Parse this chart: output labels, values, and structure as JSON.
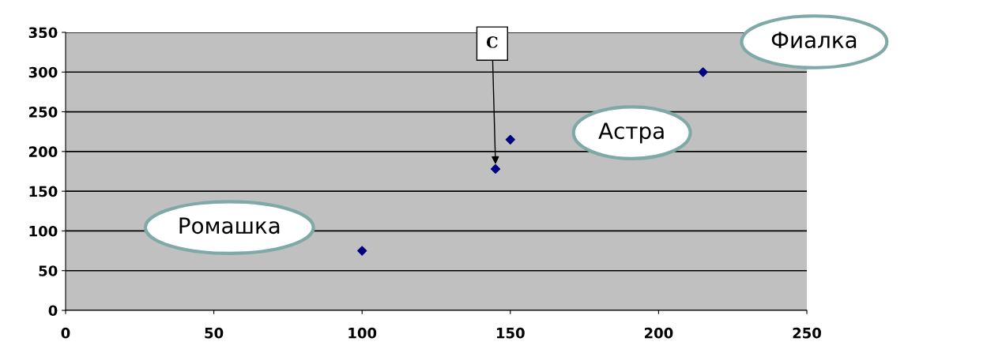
{
  "chart_data": {
    "type": "scatter",
    "x": [
      100,
      145,
      150,
      215
    ],
    "values": [
      75,
      178,
      215,
      300
    ],
    "color": "#000080",
    "marker": "diamond",
    "xlim": [
      0,
      250
    ],
    "ylim": [
      0,
      350
    ],
    "xticks": [
      0,
      50,
      100,
      150,
      200,
      250
    ],
    "yticks": [
      0,
      50,
      100,
      150,
      200,
      250,
      300,
      350
    ],
    "grid": "y",
    "annotations": [
      "Ромашка",
      {
        "text": "C",
        "x": 145,
        "y": 178
      },
      "Астра",
      "Фиалка"
    ]
  }
}
